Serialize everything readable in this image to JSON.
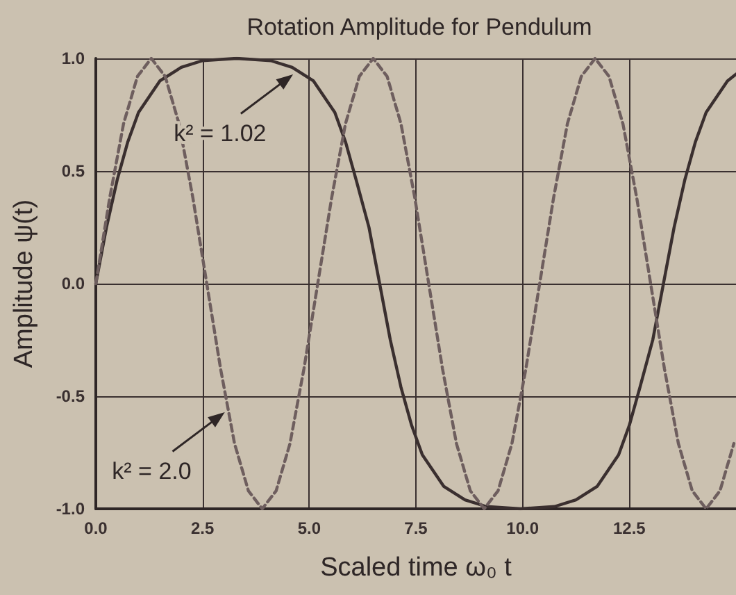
{
  "chart_data": {
    "type": "line",
    "title": "Rotation Amplitude for Pendulum",
    "xlabel": "Scaled time ω₀ t",
    "ylabel": "Amplitude ψ(t)",
    "xlim": [
      0,
      15
    ],
    "ylim": [
      -1,
      1
    ],
    "xticks": [
      {
        "value": 0,
        "label": "0.0"
      },
      {
        "value": 2.5,
        "label": "2.5"
      },
      {
        "value": 5,
        "label": "5.0"
      },
      {
        "value": 7.5,
        "label": "7.5"
      },
      {
        "value": 10,
        "label": "10.0"
      },
      {
        "value": 12.5,
        "label": "12.5"
      }
    ],
    "yticks": [
      {
        "value": -1,
        "label": "-1.0"
      },
      {
        "value": -0.5,
        "label": "-0.5"
      },
      {
        "value": 0,
        "label": "0.0"
      },
      {
        "value": 0.5,
        "label": "0.5"
      },
      {
        "value": 1,
        "label": "1.0"
      }
    ],
    "grid": true,
    "marker": "none",
    "series": [
      {
        "color": "#3a2f2f",
        "line_style": "solid",
        "x": [
          0,
          0.25,
          0.5,
          0.75,
          1.0,
          1.5,
          2.0,
          2.5,
          3.3,
          4.1,
          4.6,
          5.1,
          5.6,
          5.85,
          6.1,
          6.4,
          6.65,
          6.9,
          7.15,
          7.4,
          7.65,
          8.15,
          8.65,
          9.15,
          9.95,
          10.75,
          11.25,
          11.75,
          12.25,
          12.5,
          12.75,
          13.05,
          13.3,
          13.55,
          13.8,
          14.05,
          14.3,
          14.8,
          15
        ],
        "values": [
          0,
          0.25,
          0.46,
          0.63,
          0.76,
          0.9,
          0.96,
          0.99,
          1,
          0.99,
          0.96,
          0.9,
          0.76,
          0.63,
          0.46,
          0.25,
          0,
          -0.25,
          -0.46,
          -0.63,
          -0.76,
          -0.9,
          -0.96,
          -0.99,
          -1,
          -0.99,
          -0.96,
          -0.9,
          -0.76,
          -0.63,
          -0.46,
          -0.25,
          0,
          0.25,
          0.46,
          0.63,
          0.76,
          0.9,
          0.93
        ]
      },
      {
        "color": "#6e5e5e",
        "line_style": "dashed",
        "x": [
          0,
          0.325,
          0.65,
          0.975,
          1.3,
          1.625,
          1.95,
          2.275,
          2.6,
          2.925,
          3.25,
          3.575,
          3.9,
          4.225,
          4.55,
          4.875,
          5.2,
          5.525,
          5.85,
          6.175,
          6.5,
          6.825,
          7.15,
          7.475,
          7.8,
          8.125,
          8.45,
          8.775,
          9.1,
          9.425,
          9.75,
          10.075,
          10.4,
          10.725,
          11.05,
          11.375,
          11.7,
          12.025,
          12.35,
          12.675,
          13.0,
          13.325,
          13.65,
          13.975,
          14.3,
          14.625,
          14.95
        ],
        "values": [
          0,
          0.38,
          0.71,
          0.92,
          1,
          0.92,
          0.71,
          0.38,
          0,
          -0.38,
          -0.71,
          -0.92,
          -1,
          -0.92,
          -0.71,
          -0.38,
          0,
          0.38,
          0.71,
          0.92,
          1,
          0.92,
          0.71,
          0.38,
          0,
          -0.38,
          -0.71,
          -0.92,
          -1,
          -0.92,
          -0.71,
          -0.38,
          0,
          0.38,
          0.71,
          0.92,
          1,
          0.92,
          0.71,
          0.38,
          0,
          -0.38,
          -0.71,
          -0.92,
          -1,
          -0.92,
          -0.71
        ]
      }
    ],
    "annotations": [
      {
        "text": "k² = 1.02",
        "x": 4.7,
        "y": 0.94
      },
      {
        "text": "k² = 2.0",
        "x": 3.1,
        "y": -0.56
      }
    ]
  }
}
